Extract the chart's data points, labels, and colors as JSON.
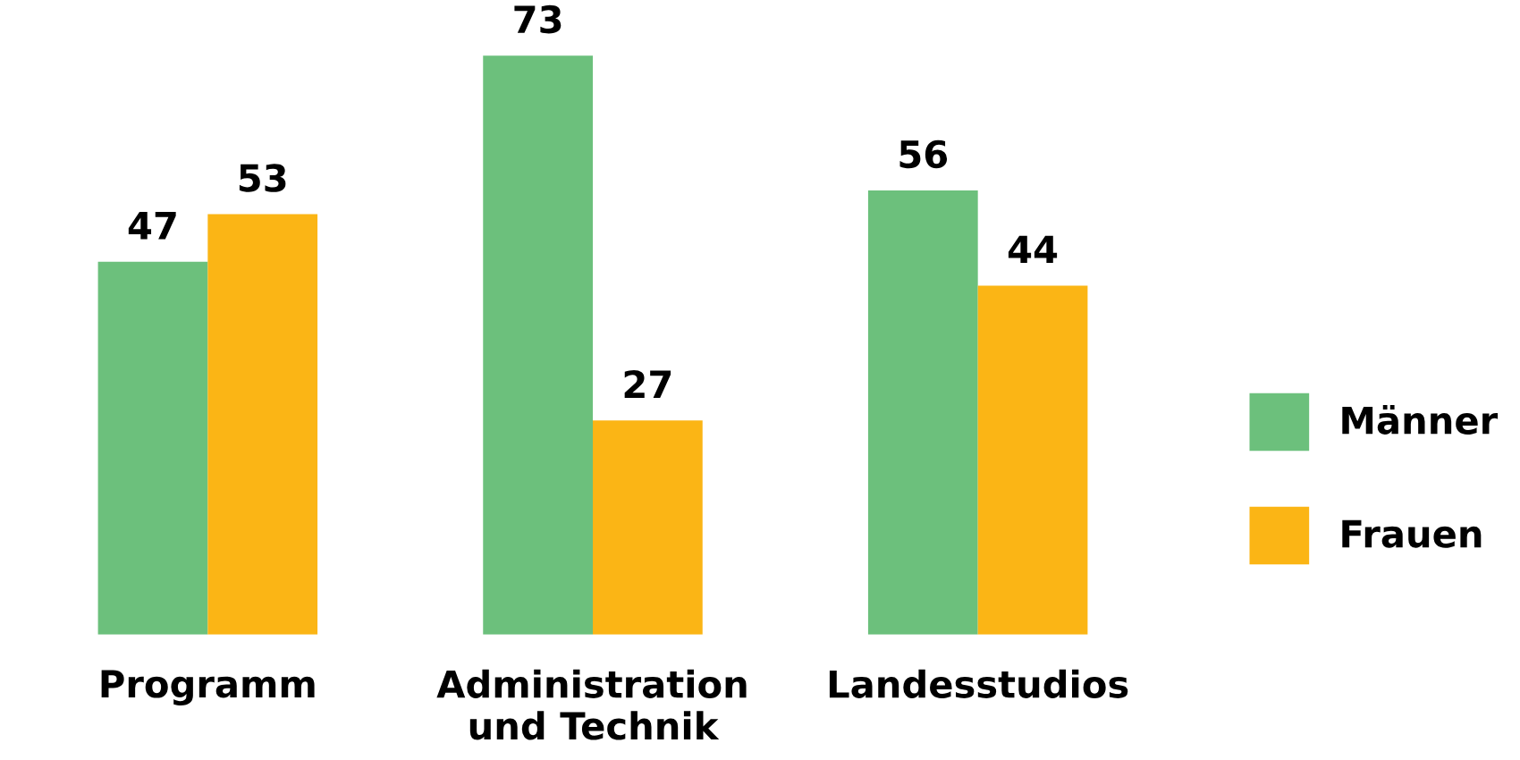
{
  "chart_data": {
    "type": "bar",
    "categories": [
      "Programm",
      "Administration\nund Technik",
      "Landesstudios"
    ],
    "series": [
      {
        "name": "Männer",
        "color": "#6cc07c",
        "values": [
          47,
          73,
          56
        ]
      },
      {
        "name": "Frauen",
        "color": "#fbb515",
        "values": [
          53,
          27,
          44
        ]
      }
    ],
    "data_labels": true,
    "legend": "right",
    "grid": false,
    "tick_labels": "x"
  }
}
